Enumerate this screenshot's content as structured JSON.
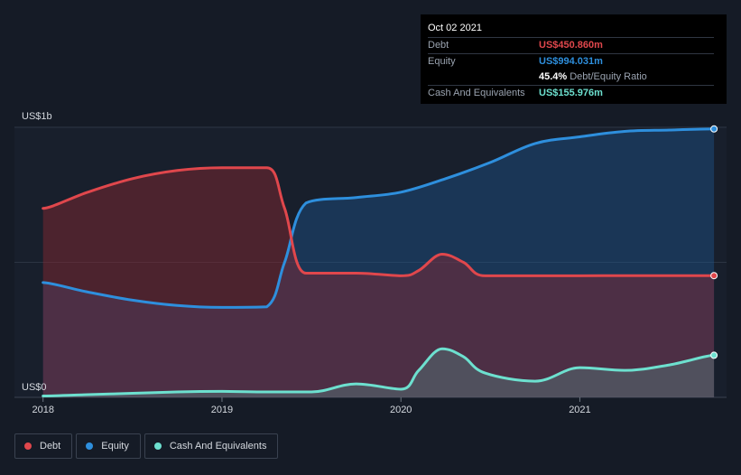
{
  "tooltip": {
    "date": "Oct 02 2021",
    "debt_label": "Debt",
    "debt_value": "US$450.860m",
    "equity_label": "Equity",
    "equity_value": "US$994.031m",
    "ratio_value": "45.4%",
    "ratio_label": "Debt/Equity Ratio",
    "cash_label": "Cash And Equivalents",
    "cash_value": "US$155.976m"
  },
  "legend": {
    "debt": "Debt",
    "equity": "Equity",
    "cash": "Cash And Equivalents"
  },
  "colors": {
    "debt": "#e0474c",
    "equity": "#2e8fdd",
    "cash": "#6de0cf",
    "background": "#151b26"
  },
  "chart_data": {
    "type": "area",
    "ylabel_top": "US$1b",
    "ylabel_bottom": "US$0",
    "ylim": [
      0,
      1000
    ],
    "grid": true,
    "legend_position": "bottom-left",
    "x_ticks": [
      {
        "x": 2018.0,
        "label": "2018"
      },
      {
        "x": 2019.0,
        "label": "2019"
      },
      {
        "x": 2020.0,
        "label": "2020"
      },
      {
        "x": 2021.0,
        "label": "2021"
      }
    ],
    "x_range": [
      2017.84,
      2021.82
    ],
    "series": [
      {
        "name": "Debt",
        "points": [
          [
            2018.0,
            700
          ],
          [
            2018.25,
            760
          ],
          [
            2018.5,
            810
          ],
          [
            2018.75,
            840
          ],
          [
            2019.0,
            850
          ],
          [
            2019.25,
            850
          ],
          [
            2019.35,
            700
          ],
          [
            2019.47,
            460
          ],
          [
            2019.75,
            460
          ],
          [
            2020.0,
            450
          ],
          [
            2020.1,
            470
          ],
          [
            2020.23,
            530
          ],
          [
            2020.35,
            500
          ],
          [
            2020.47,
            450
          ],
          [
            2020.75,
            450
          ],
          [
            2021.0,
            450
          ],
          [
            2021.25,
            451
          ],
          [
            2021.5,
            451
          ],
          [
            2021.75,
            451
          ]
        ]
      },
      {
        "name": "Equity",
        "points": [
          [
            2018.0,
            425
          ],
          [
            2018.25,
            390
          ],
          [
            2018.5,
            360
          ],
          [
            2018.75,
            340
          ],
          [
            2019.0,
            333
          ],
          [
            2019.25,
            335
          ],
          [
            2019.35,
            500
          ],
          [
            2019.47,
            720
          ],
          [
            2019.75,
            740
          ],
          [
            2020.0,
            760
          ],
          [
            2020.25,
            810
          ],
          [
            2020.5,
            870
          ],
          [
            2020.75,
            940
          ],
          [
            2021.0,
            965
          ],
          [
            2021.25,
            985
          ],
          [
            2021.5,
            990
          ],
          [
            2021.75,
            994
          ]
        ]
      },
      {
        "name": "Cash And Equivalents",
        "points": [
          [
            2018.0,
            5
          ],
          [
            2018.25,
            10
          ],
          [
            2018.5,
            15
          ],
          [
            2018.75,
            20
          ],
          [
            2019.0,
            22
          ],
          [
            2019.25,
            20
          ],
          [
            2019.5,
            20
          ],
          [
            2019.75,
            50
          ],
          [
            2020.0,
            30
          ],
          [
            2020.1,
            100
          ],
          [
            2020.23,
            180
          ],
          [
            2020.35,
            150
          ],
          [
            2020.47,
            90
          ],
          [
            2020.75,
            60
          ],
          [
            2021.0,
            110
          ],
          [
            2021.25,
            100
          ],
          [
            2021.5,
            120
          ],
          [
            2021.75,
            156
          ]
        ]
      }
    ]
  }
}
